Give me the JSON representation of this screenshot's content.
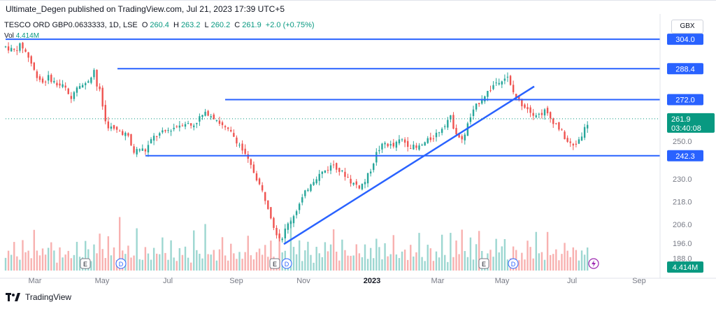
{
  "header": {
    "published_by": "Ultimate_Degen published on TradingView.com, Jul 21, 2023 17:39 UTC+5"
  },
  "legend": {
    "symbol": "TESCO ORD GBP0.0633333, 1D, LSE",
    "open_label": "O",
    "open": "260.4",
    "high_label": "H",
    "high": "263.2",
    "low_label": "L",
    "low": "260.2",
    "close_label": "C",
    "close": "261.9",
    "change": "+2.0 (+0.75%)",
    "volume_label": "Vol",
    "volume": "4.414M"
  },
  "currency_button": "GBX",
  "footer": {
    "brand": "TradingView"
  },
  "colors": {
    "up": "#26a69a",
    "down": "#ef5350",
    "line": "#2962ff",
    "label_bg": "#2962ff",
    "price_label_bg": "#089981",
    "text": "#131722",
    "axis": "#787b86"
  },
  "chart_data": {
    "type": "candlestick",
    "y_axis": {
      "ticks": [
        188.0,
        196.0,
        206.0,
        218.0,
        230.0,
        242.3,
        250.0,
        261.9,
        272.0,
        288.4,
        304.0
      ],
      "tick_labels": [
        "188.0",
        "196.0",
        "206.0",
        "218.0",
        "230.0",
        "",
        "250.0",
        "",
        "",
        "",
        ""
      ],
      "ylim": [
        183,
        307
      ]
    },
    "x_axis": {
      "tick_labels": [
        "Mar",
        "May",
        "Jul",
        "Sep",
        "Nov",
        "2023",
        "Mar",
        "May",
        "Jul",
        "Sep"
      ]
    },
    "horizontal_levels": [
      {
        "value": 304.0,
        "label": "304.0",
        "from": "Feb 2022"
      },
      {
        "value": 288.4,
        "label": "288.4",
        "from": "May 2022"
      },
      {
        "value": 272.0,
        "label": "272.0",
        "from": "Aug 2022"
      },
      {
        "value": 242.3,
        "label": "242.3",
        "from": "Jun 2022"
      }
    ],
    "current_price": {
      "value": 261.9,
      "label": "261.9",
      "countdown": "03:40:08"
    },
    "volume_label": "4.414M",
    "trendline": {
      "start": [
        "Oct 2022",
        195.5
      ],
      "end": [
        "May 2023",
        279.0
      ]
    },
    "events": [
      {
        "type": "E",
        "at": "Apr 2022"
      },
      {
        "type": "D",
        "at": "May 2022"
      },
      {
        "type": "E",
        "at": "Oct 2022"
      },
      {
        "type": "D",
        "at": "Oct 2022"
      },
      {
        "type": "E",
        "at": "Apr 2023"
      },
      {
        "type": "D",
        "at": "May 2023"
      }
    ],
    "price_path": [
      [
        0,
        300
      ],
      [
        8,
        298
      ],
      [
        16,
        301
      ],
      [
        24,
        294
      ],
      [
        30,
        286
      ],
      [
        38,
        281
      ],
      [
        44,
        284
      ],
      [
        52,
        280
      ],
      [
        60,
        279
      ],
      [
        66,
        271
      ],
      [
        70,
        278
      ],
      [
        76,
        281
      ],
      [
        80,
        279
      ],
      [
        86,
        284
      ],
      [
        90,
        288
      ],
      [
        92,
        280
      ],
      [
        96,
        276
      ],
      [
        102,
        259
      ],
      [
        110,
        256
      ],
      [
        118,
        255
      ],
      [
        124,
        253
      ],
      [
        130,
        244
      ],
      [
        136,
        246
      ],
      [
        142,
        245
      ],
      [
        150,
        252
      ],
      [
        158,
        254
      ],
      [
        166,
        256
      ],
      [
        174,
        258
      ],
      [
        182,
        260
      ],
      [
        190,
        258
      ],
      [
        198,
        263
      ],
      [
        206,
        265
      ],
      [
        214,
        262
      ],
      [
        222,
        257
      ],
      [
        230,
        254
      ],
      [
        238,
        248
      ],
      [
        246,
        240
      ],
      [
        254,
        232
      ],
      [
        262,
        222
      ],
      [
        268,
        214
      ],
      [
        272,
        206
      ],
      [
        276,
        201
      ],
      [
        280,
        198
      ],
      [
        286,
        205
      ],
      [
        292,
        210
      ],
      [
        298,
        216
      ],
      [
        304,
        222
      ],
      [
        310,
        228
      ],
      [
        318,
        232
      ],
      [
        326,
        235
      ],
      [
        334,
        238
      ],
      [
        340,
        234
      ],
      [
        346,
        232
      ],
      [
        352,
        228
      ],
      [
        360,
        226
      ],
      [
        366,
        229
      ],
      [
        372,
        236
      ],
      [
        378,
        245
      ],
      [
        386,
        249
      ],
      [
        394,
        247
      ],
      [
        402,
        251
      ],
      [
        410,
        248
      ],
      [
        418,
        246
      ],
      [
        426,
        249
      ],
      [
        434,
        252
      ],
      [
        440,
        255
      ],
      [
        446,
        259
      ],
      [
        452,
        263
      ],
      [
        456,
        257
      ],
      [
        460,
        253
      ],
      [
        464,
        250
      ],
      [
        468,
        256
      ],
      [
        472,
        262
      ],
      [
        476,
        266
      ],
      [
        480,
        270
      ],
      [
        486,
        274
      ],
      [
        492,
        277
      ],
      [
        498,
        281
      ],
      [
        504,
        283
      ],
      [
        510,
        284
      ],
      [
        514,
        278
      ],
      [
        518,
        274
      ],
      [
        524,
        270
      ],
      [
        530,
        268
      ],
      [
        536,
        265
      ],
      [
        542,
        264
      ],
      [
        548,
        266
      ],
      [
        554,
        262
      ],
      [
        560,
        259
      ],
      [
        566,
        254
      ],
      [
        572,
        249
      ],
      [
        578,
        247
      ],
      [
        584,
        252
      ],
      [
        590,
        258
      ],
      [
        594,
        262
      ]
    ],
    "volume_pattern": [
      0.25,
      0.4,
      0.3,
      0.55,
      0.35,
      0.2,
      0.6,
      0.3,
      0.45,
      0.25,
      0.8,
      0.35,
      0.3,
      0.5,
      0.25,
      0.4,
      0.65,
      0.3,
      0.2,
      0.45,
      0.35,
      0.25,
      0.5,
      0.3,
      0.4,
      0.7,
      0.28,
      0.22,
      0.5,
      0.33
    ]
  }
}
